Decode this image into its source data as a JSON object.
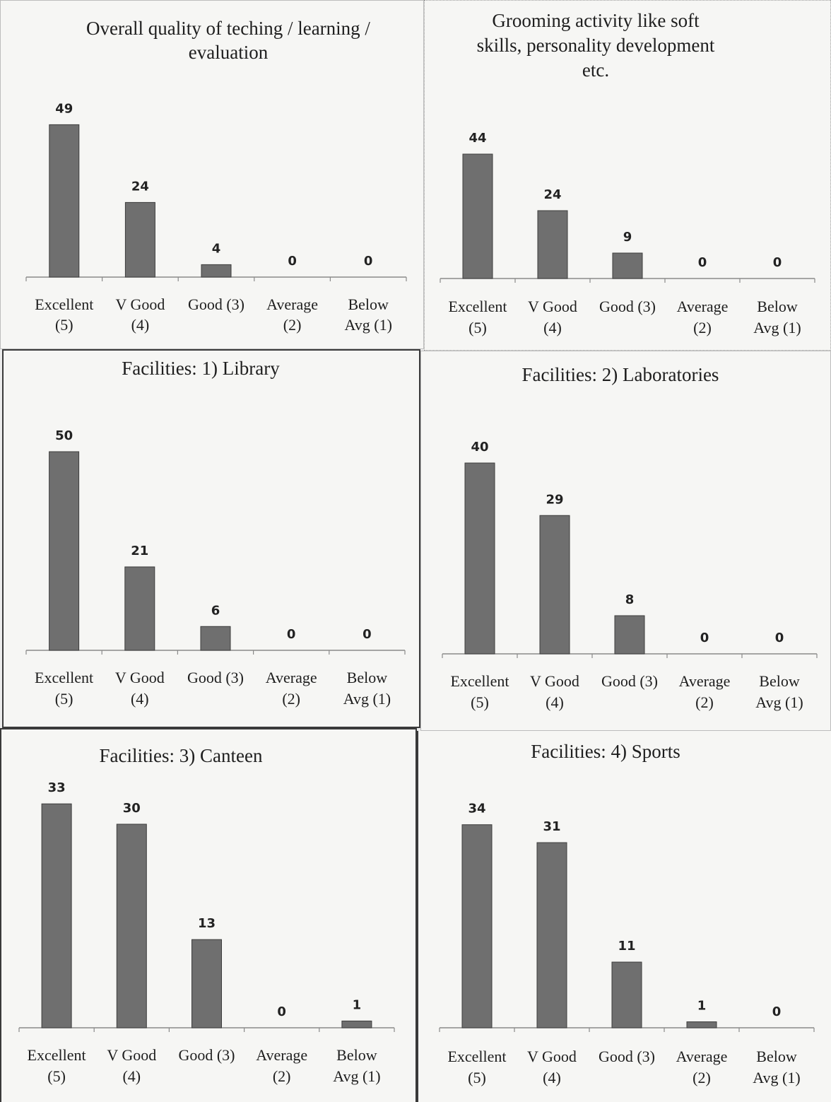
{
  "colors": {
    "bar": "#6f6f6f",
    "bar_edge": "#3d3d3d",
    "axis": "#8a8a8a",
    "background": "#f6f6f4"
  },
  "chart_data": [
    {
      "type": "bar",
      "title": "Overall quality of teching / learning / evaluation",
      "title_lines": [
        "Overall quality of teching / learning /",
        "evaluation"
      ],
      "categories": [
        "Excellent (5)",
        "V Good (4)",
        "Good (3)",
        "Average (2)",
        "Below Avg (1)"
      ],
      "category_lines": [
        [
          "Excellent",
          "(5)"
        ],
        [
          "V Good",
          "(4)"
        ],
        [
          "Good (3)",
          ""
        ],
        [
          "Average",
          "(2)"
        ],
        [
          "Below",
          "Avg (1)"
        ]
      ],
      "values": [
        49,
        24,
        4,
        0,
        0
      ],
      "data_labels": [
        "49",
        "24",
        "4",
        "0",
        "0"
      ]
    },
    {
      "type": "bar",
      "title": "Grooming activity like soft skills, personality development etc.",
      "title_lines": [
        "Grooming activity like soft",
        "skills, personality development",
        "etc."
      ],
      "categories": [
        "Excellent (5)",
        "V Good (4)",
        "Good (3)",
        "Average (2)",
        "Below Avg (1)"
      ],
      "category_lines": [
        [
          "Excellent",
          "(5)"
        ],
        [
          "V Good",
          "(4)"
        ],
        [
          "Good (3)",
          ""
        ],
        [
          "Average",
          "(2)"
        ],
        [
          "Below",
          "Avg (1)"
        ]
      ],
      "values": [
        44,
        24,
        9,
        0,
        0
      ],
      "data_labels": [
        "44",
        "24",
        "9",
        "0",
        "0"
      ]
    },
    {
      "type": "bar",
      "title": "Facilities: 1) Library",
      "title_lines": [
        "Facilities: 1) Library"
      ],
      "categories": [
        "Excellent (5)",
        "V Good (4)",
        "Good (3)",
        "Average (2)",
        "Below Avg (1)"
      ],
      "category_lines": [
        [
          "Excellent",
          "(5)"
        ],
        [
          "V Good",
          "(4)"
        ],
        [
          "Good (3)",
          ""
        ],
        [
          "Average",
          "(2)"
        ],
        [
          "Below",
          "Avg (1)"
        ]
      ],
      "values": [
        50,
        21,
        6,
        0,
        0
      ],
      "data_labels": [
        "50",
        "21",
        "6",
        "0",
        "0"
      ]
    },
    {
      "type": "bar",
      "title": "Facilities: 2) Laboratories",
      "title_lines": [
        "Facilities: 2) Laboratories"
      ],
      "categories": [
        "Excellent (5)",
        "V Good (4)",
        "Good (3)",
        "Average (2)",
        "Below Avg (1)"
      ],
      "category_lines": [
        [
          "Excellent",
          "(5)"
        ],
        [
          "V Good",
          "(4)"
        ],
        [
          "Good (3)",
          ""
        ],
        [
          "Average",
          "(2)"
        ],
        [
          "Below",
          "Avg (1)"
        ]
      ],
      "values": [
        40,
        29,
        8,
        0,
        0
      ],
      "data_labels": [
        "40",
        "29",
        "8",
        "0",
        "0"
      ]
    },
    {
      "type": "bar",
      "title": "Facilities: 3) Canteen",
      "title_lines": [
        "Facilities: 3) Canteen"
      ],
      "categories": [
        "Excellent (5)",
        "V Good (4)",
        "Good (3)",
        "Average (2)",
        "Below Avg (1)"
      ],
      "category_lines": [
        [
          "Excellent",
          "(5)"
        ],
        [
          "V Good",
          "(4)"
        ],
        [
          "Good (3)",
          ""
        ],
        [
          "Average",
          "(2)"
        ],
        [
          "Below",
          "Avg (1)"
        ]
      ],
      "values": [
        33,
        30,
        13,
        0,
        1
      ],
      "data_labels": [
        "33",
        "30",
        "13",
        "0",
        "1"
      ]
    },
    {
      "type": "bar",
      "title": "Facilities: 4) Sports",
      "title_lines": [
        "Facilities: 4) Sports"
      ],
      "categories": [
        "Excellent (5)",
        "V Good (4)",
        "Good (3)",
        "Average (2)",
        "Below Avg (1)"
      ],
      "category_lines": [
        [
          "Excellent",
          "(5)"
        ],
        [
          "V Good",
          "(4)"
        ],
        [
          "Good (3)",
          ""
        ],
        [
          "Average",
          "(2)"
        ],
        [
          "Below",
          "Avg (1)"
        ]
      ],
      "values": [
        34,
        31,
        11,
        1,
        0
      ],
      "data_labels": [
        "34",
        "31",
        "11",
        "1",
        "0"
      ]
    }
  ]
}
